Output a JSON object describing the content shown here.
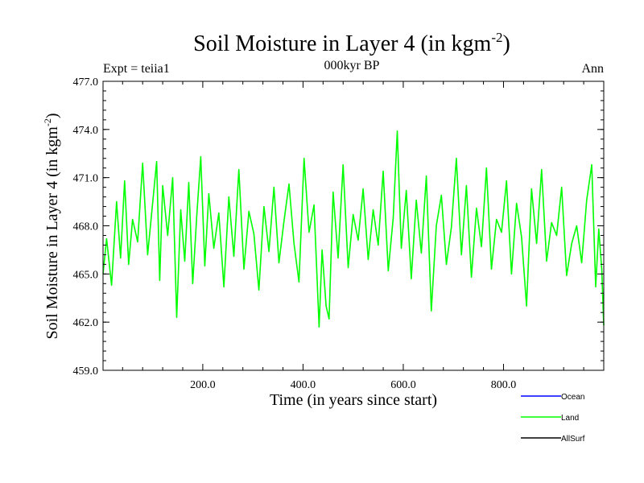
{
  "chart_data": {
    "type": "line",
    "title": "Soil Moisture in Layer 4 (in kgm",
    "title_sup": "-2",
    "title_close": ")",
    "subtitle": "000kyr BP",
    "left_label": "Expt = teiia1",
    "right_label": "Ann",
    "xlabel": "Time (in years since start)",
    "ylabel": "Soil Moisture in Layer 4 (in kgm",
    "ylabel_sup": "-2",
    "ylabel_close": ")",
    "xlim": [
      1,
      1000
    ],
    "ylim": [
      459.0,
      477.0
    ],
    "x_ticks": [
      200,
      400,
      600,
      800
    ],
    "x_tick_labels": [
      "200.0",
      "400.0",
      "600.0",
      "800.0"
    ],
    "y_ticks": [
      459,
      462,
      465,
      468,
      471,
      474,
      477
    ],
    "y_tick_labels": [
      "459.0",
      "462.0",
      "465.0",
      "468.0",
      "471.0",
      "474.0",
      "477.0"
    ],
    "grid": false,
    "legend_position": "bottom-right",
    "series": [
      {
        "name": "Ocean",
        "color": "#0000ff",
        "x": [],
        "y": []
      },
      {
        "name": "Land",
        "color": "#00ff00",
        "x": [
          1,
          8,
          18,
          28,
          36,
          44,
          52,
          60,
          70,
          80,
          90,
          100,
          108,
          114,
          120,
          130,
          140,
          148,
          156,
          164,
          172,
          180,
          188,
          196,
          204,
          212,
          222,
          232,
          242,
          252,
          262,
          272,
          282,
          292,
          302,
          312,
          322,
          332,
          342,
          352,
          362,
          372,
          382,
          392,
          402,
          412,
          422,
          432,
          438,
          446,
          452,
          460,
          470,
          480,
          490,
          500,
          510,
          520,
          530,
          540,
          550,
          560,
          570,
          580,
          588,
          596,
          606,
          616,
          626,
          636,
          646,
          656,
          666,
          676,
          686,
          696,
          706,
          716,
          726,
          736,
          746,
          756,
          766,
          776,
          786,
          796,
          806,
          816,
          826,
          836,
          846,
          856,
          866,
          876,
          886,
          896,
          906,
          916,
          926,
          936,
          946,
          956,
          966,
          976,
          984,
          990,
          996,
          1000
        ],
        "y": [
          465.0,
          467.2,
          464.3,
          469.5,
          466.0,
          470.8,
          465.6,
          468.4,
          467.0,
          471.9,
          466.2,
          469.4,
          472.0,
          464.6,
          470.5,
          467.4,
          471.0,
          462.3,
          469.0,
          465.8,
          470.7,
          464.4,
          468.6,
          472.3,
          465.5,
          470.0,
          466.6,
          468.8,
          464.2,
          469.8,
          466.1,
          471.5,
          465.3,
          468.9,
          467.5,
          464.0,
          469.2,
          466.4,
          470.4,
          465.7,
          468.3,
          470.6,
          466.9,
          464.5,
          472.2,
          467.6,
          469.3,
          461.7,
          466.5,
          463.0,
          462.2,
          470.1,
          466.0,
          471.8,
          465.4,
          468.7,
          467.1,
          470.3,
          465.9,
          469.0,
          466.8,
          471.4,
          465.2,
          468.5,
          473.9,
          466.6,
          470.2,
          464.7,
          469.6,
          466.3,
          471.1,
          462.7,
          468.0,
          469.9,
          465.6,
          467.9,
          472.2,
          466.2,
          470.5,
          464.8,
          469.1,
          466.7,
          471.6,
          465.3,
          468.4,
          467.6,
          470.8,
          465.0,
          469.4,
          467.3,
          463.0,
          470.3,
          466.9,
          471.5,
          465.8,
          468.2,
          467.4,
          470.4,
          464.9,
          466.9,
          468.0,
          465.7,
          469.6,
          471.8,
          464.2,
          467.8,
          465.3,
          461.8
        ]
      },
      {
        "name": "AllSurf",
        "color": "#000000",
        "x": [],
        "y": []
      }
    ]
  }
}
